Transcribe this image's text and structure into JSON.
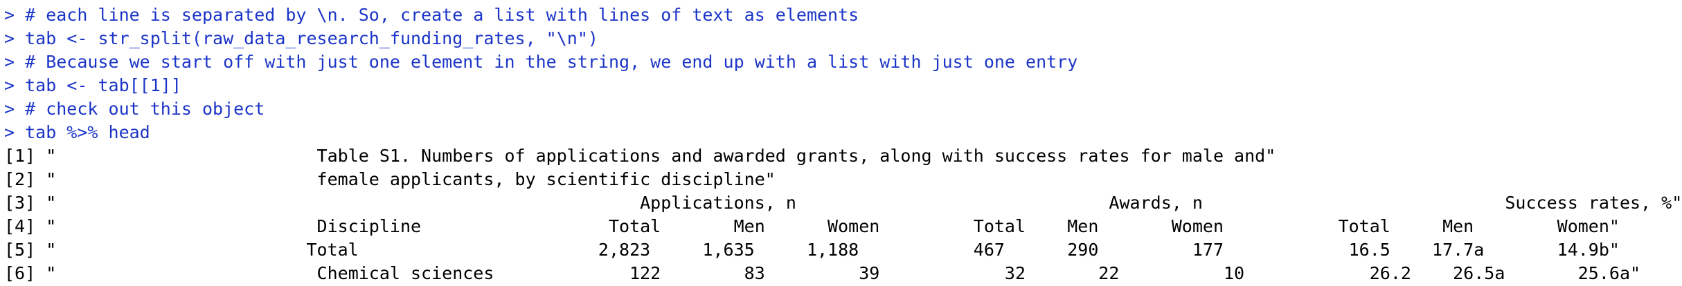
{
  "console": {
    "text_color": "#000000",
    "command_color": "#1b35c8",
    "background": "#ffffff",
    "lines": [
      {
        "type": "cmd",
        "text": "> # each line is separated by \\n. So, create a list with lines of text as elements"
      },
      {
        "type": "cmd",
        "text": "> tab <- str_split(raw_data_research_funding_rates, \"\\n\")"
      },
      {
        "type": "cmd",
        "text": "> # Because we start off with just one element in the string, we end up with a list with just one entry"
      },
      {
        "type": "cmd",
        "text": "> tab <- tab[[1]]"
      },
      {
        "type": "cmd",
        "text": "> # check out this object"
      },
      {
        "type": "cmd",
        "text": "> tab %>% head"
      },
      {
        "type": "out",
        "text": "[1] \"                         Table S1. Numbers of applications and awarded grants, along with success rates for male and\""
      },
      {
        "type": "out",
        "text": "[2] \"                         female applicants, by scientific discipline\""
      },
      {
        "type": "out",
        "text": "[3] \"                                                        Applications, n                              Awards, n                             Success rates, %\""
      },
      {
        "type": "out",
        "text": "[4] \"                         Discipline                  Total       Men      Women         Total    Men       Women           Total     Men        Women\""
      },
      {
        "type": "out",
        "text": "[5] \"                        Total                       2,823     1,635     1,188           467      290         177            16.5    17.7a       14.9b\""
      },
      {
        "type": "out",
        "text": "[6] \"                         Chemical sciences             122        83         39            32       22          10            26.2    26.5a       25.6a\""
      }
    ]
  }
}
